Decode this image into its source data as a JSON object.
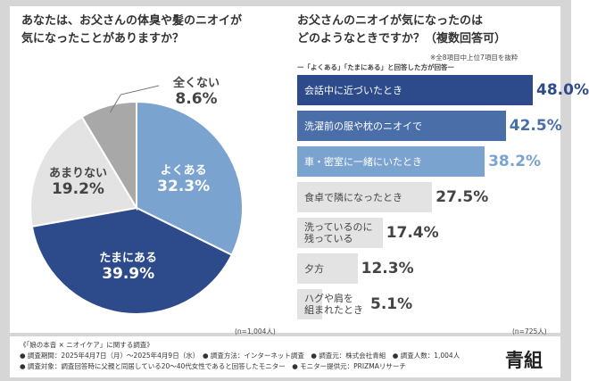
{
  "left_chart": {
    "title_line1": "あなたは、お父さんの体臭や髪のニオイが",
    "title_line2": "気になったことがありますか？",
    "note": "(n=1,004人)"
  },
  "right_chart": {
    "title_line1": "お父さんのニオイが気になったのは",
    "title_line2": "どのようなときですか？（複数回答可）",
    "subnote1": "※全8項目中上位7項目を抜粋",
    "subnote2": "ー「よくある」「たまにある」と回答した方が回答ー",
    "note": "(n=725人)"
  },
  "chart_data": [
    {
      "type": "pie",
      "title": "あなたは、お父さんの体臭や髪のニオイが気になったことがありますか？",
      "slices": [
        {
          "label": "よくある",
          "value": 32.3,
          "display": "32.3%",
          "color": "#7ba3cf"
        },
        {
          "label": "たまにある",
          "value": 39.9,
          "display": "39.9%",
          "color": "#2d4a8a"
        },
        {
          "label": "あまりない",
          "value": 19.2,
          "display": "19.2%",
          "color": "#e3e3e3"
        },
        {
          "label": "全くない",
          "value": 8.6,
          "display": "8.6%",
          "color": "#a8a8a8"
        }
      ]
    },
    {
      "type": "bar",
      "orientation": "horizontal",
      "title": "お父さんのニオイが気になったのはどのようなときですか？（複数回答可）",
      "xlim": [
        0,
        50
      ],
      "categories": [
        {
          "lines": [
            "会話中に近づいたとき"
          ],
          "value": 48.0,
          "display": "48.0%",
          "color": "#2d4a8a",
          "label_color": "#ffffff",
          "value_color": "#2d4a8a"
        },
        {
          "lines": [
            "洗濯前の服や枕のニオイで"
          ],
          "value": 42.5,
          "display": "42.5%",
          "color": "#4a6ea8",
          "label_color": "#ffffff",
          "value_color": "#4a6ea8"
        },
        {
          "lines": [
            "車・密室に一緒にいたとき"
          ],
          "value": 38.2,
          "display": "38.2%",
          "color": "#7ba3cf",
          "label_color": "#ffffff",
          "value_color": "#7ba3cf"
        },
        {
          "lines": [
            "食卓で隣になったとき"
          ],
          "value": 27.5,
          "display": "27.5%",
          "color": "#e3e3e3",
          "label_color": "#444444",
          "value_color": "#444444"
        },
        {
          "lines": [
            "洗っているのに",
            "残っている"
          ],
          "value": 17.4,
          "display": "17.4%",
          "color": "#e3e3e3",
          "label_color": "#444444",
          "value_color": "#444444"
        },
        {
          "lines": [
            "夕方"
          ],
          "value": 12.3,
          "display": "12.3%",
          "color": "#e3e3e3",
          "label_color": "#444444",
          "value_color": "#444444"
        },
        {
          "lines": [
            "ハグや肩を",
            "組まれたとき"
          ],
          "value": 5.1,
          "display": "5.1%",
          "color": "#e3e3e3",
          "label_color": "#444444",
          "value_color": "#444444"
        }
      ]
    }
  ],
  "footer": {
    "line1": "《「娘の本音 × ニオイケア」に関する調査》",
    "line2": "● 調査期間：2025年4月7日（月）〜2025年4月9日（水）　● 調査方法：インターネット調査　● 調査元：株式会社青組　● 調査人数：1,004人",
    "line3": "● 調査対象：調査回答時に父親と同居している20〜40代女性であると回答したモニター　● モニター提供元：PRIZMAリサーチ",
    "brand": "青組"
  }
}
